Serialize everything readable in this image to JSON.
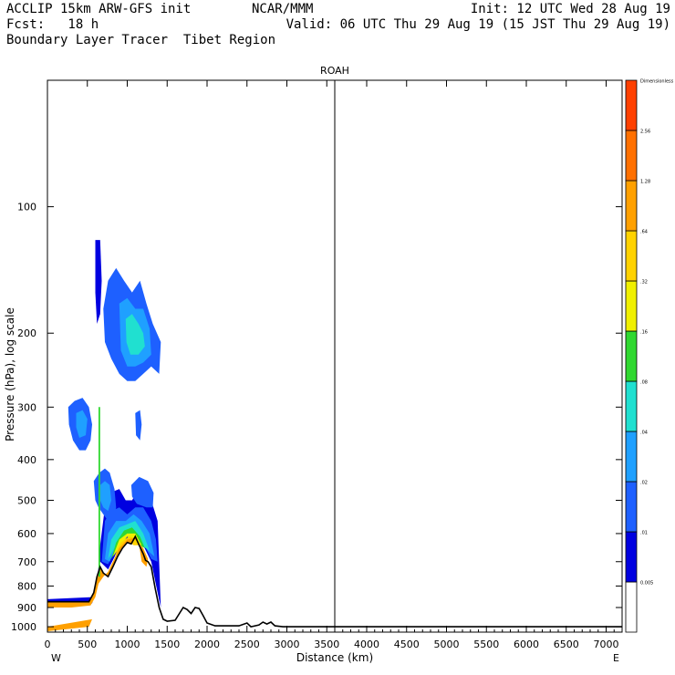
{
  "header": {
    "line1_left": "ACCLIP 15km ARW-GFS init",
    "line1_mid": "NCAR/MMM",
    "line1_right": "Init: 12 UTC Wed 28 Aug 19",
    "line2_left": "Fcst:   18 h",
    "line2_right": "Valid: 06 UTC Thu 29 Aug 19 (15 JST Thu 29 Aug 19)",
    "line3_left": "Boundary Layer Tracer  Tibet Region"
  },
  "chart_data": {
    "type": "heatmap",
    "title": "ROAH",
    "xlabel": "Distance (km)",
    "ylabel": "Pressure (hPa), log scale",
    "x_ticks": [
      0,
      500,
      1000,
      1500,
      2000,
      2500,
      3000,
      3500,
      4000,
      4500,
      5000,
      5500,
      6000,
      6500,
      7000
    ],
    "x_range": [
      0,
      7200
    ],
    "y_ticks": [
      100,
      200,
      300,
      400,
      500,
      600,
      700,
      800,
      900,
      1000
    ],
    "y_range": [
      50,
      1030
    ],
    "y_scale": "log",
    "left_end_label": "W",
    "right_end_label": "E",
    "marker_line_x": 3600,
    "colorbar": {
      "levels": [
        "0.005",
        ".01",
        ".02",
        ".04",
        ".08",
        ".16",
        ".32",
        ".64",
        "1.28",
        "2.56",
        "Dimensionless"
      ],
      "colors": [
        "#ffffff",
        "#0000e0",
        "#1e60ff",
        "#1fa0ff",
        "#20e0d0",
        "#30d830",
        "#f0f000",
        "#ffd200",
        "#ffa000",
        "#ff7000",
        "#ff4000"
      ]
    },
    "terrain": [
      [
        0,
        872
      ],
      [
        300,
        872
      ],
      [
        520,
        872
      ],
      [
        580,
        830
      ],
      [
        620,
        760
      ],
      [
        660,
        720
      ],
      [
        700,
        745
      ],
      [
        760,
        760
      ],
      [
        820,
        720
      ],
      [
        880,
        680
      ],
      [
        940,
        650
      ],
      [
        1000,
        630
      ],
      [
        1050,
        635
      ],
      [
        1100,
        610
      ],
      [
        1150,
        640
      ],
      [
        1200,
        670
      ],
      [
        1230,
        695
      ],
      [
        1260,
        700
      ],
      [
        1300,
        720
      ],
      [
        1350,
        810
      ],
      [
        1400,
        900
      ],
      [
        1450,
        960
      ],
      [
        1500,
        970
      ],
      [
        1600,
        965
      ],
      [
        1700,
        900
      ],
      [
        1750,
        910
      ],
      [
        1800,
        930
      ],
      [
        1850,
        900
      ],
      [
        1900,
        905
      ],
      [
        1950,
        940
      ],
      [
        2000,
        980
      ],
      [
        2100,
        995
      ],
      [
        2400,
        995
      ],
      [
        2500,
        980
      ],
      [
        2550,
        1000
      ],
      [
        2650,
        990
      ],
      [
        2700,
        975
      ],
      [
        2750,
        985
      ],
      [
        2800,
        975
      ],
      [
        2850,
        995
      ],
      [
        2950,
        1000
      ],
      [
        3500,
        1000
      ],
      [
        4500,
        1000
      ],
      [
        7200,
        1000
      ]
    ],
    "tracer_regions": [
      {
        "level": ".01",
        "polygon": [
          [
            0,
            880
          ],
          [
            560,
            880
          ],
          [
            620,
            800
          ],
          [
            660,
            640
          ],
          [
            720,
            520
          ],
          [
            780,
            480
          ],
          [
            900,
            470
          ],
          [
            980,
            500
          ],
          [
            1060,
            500
          ],
          [
            1140,
            470
          ],
          [
            1220,
            460
          ],
          [
            1300,
            500
          ],
          [
            1380,
            560
          ],
          [
            1420,
            900
          ],
          [
            1380,
            830
          ],
          [
            1300,
            700
          ],
          [
            1200,
            640
          ],
          [
            1000,
            620
          ],
          [
            880,
            660
          ],
          [
            760,
            730
          ],
          [
            660,
            700
          ],
          [
            600,
            800
          ],
          [
            560,
            850
          ],
          [
            0,
            860
          ]
        ]
      },
      {
        "level": ".02",
        "polygon": [
          [
            680,
            700
          ],
          [
            720,
            560
          ],
          [
            800,
            530
          ],
          [
            900,
            520
          ],
          [
            1000,
            540
          ],
          [
            1100,
            520
          ],
          [
            1200,
            520
          ],
          [
            1300,
            560
          ],
          [
            1360,
            620
          ],
          [
            1380,
            700
          ],
          [
            1300,
            690
          ],
          [
            1200,
            630
          ],
          [
            1000,
            610
          ],
          [
            880,
            640
          ],
          [
            760,
            710
          ]
        ]
      },
      {
        "level": ".04",
        "polygon": [
          [
            720,
            690
          ],
          [
            760,
            600
          ],
          [
            860,
            560
          ],
          [
            980,
            560
          ],
          [
            1080,
            540
          ],
          [
            1180,
            560
          ],
          [
            1280,
            600
          ],
          [
            1340,
            680
          ],
          [
            1260,
            660
          ],
          [
            1180,
            620
          ],
          [
            1000,
            600
          ],
          [
            880,
            630
          ],
          [
            780,
            700
          ]
        ]
      },
      {
        "level": ".08",
        "polygon": [
          [
            760,
            690
          ],
          [
            800,
            620
          ],
          [
            900,
            580
          ],
          [
            1000,
            570
          ],
          [
            1100,
            560
          ],
          [
            1200,
            600
          ],
          [
            1280,
            660
          ],
          [
            1180,
            640
          ],
          [
            1000,
            600
          ],
          [
            860,
            640
          ]
        ]
      },
      {
        "level": ".16",
        "polygon": [
          [
            800,
            690
          ],
          [
            860,
            630
          ],
          [
            960,
            590
          ],
          [
            1060,
            580
          ],
          [
            1160,
            610
          ],
          [
            1220,
            650
          ],
          [
            1150,
            640
          ],
          [
            1000,
            600
          ],
          [
            880,
            650
          ]
        ]
      },
      {
        "level": ".32",
        "polygon": [
          [
            820,
            680
          ],
          [
            900,
            620
          ],
          [
            1000,
            600
          ],
          [
            1100,
            600
          ],
          [
            1180,
            640
          ],
          [
            1100,
            630
          ],
          [
            1000,
            610
          ],
          [
            900,
            650
          ]
        ]
      },
      {
        "level": ".64",
        "polygon": [
          [
            840,
            680
          ],
          [
            920,
            630
          ],
          [
            1020,
            610
          ],
          [
            1120,
            615
          ],
          [
            1160,
            640
          ],
          [
            1080,
            640
          ],
          [
            1000,
            620
          ],
          [
            900,
            660
          ]
        ]
      },
      {
        "level": "1.28",
        "polygon": [
          [
            0,
            1025
          ],
          [
            0,
            900
          ],
          [
            300,
            900
          ],
          [
            540,
            890
          ],
          [
            600,
            850
          ],
          [
            640,
            790
          ],
          [
            700,
            760
          ],
          [
            760,
            740
          ],
          [
            820,
            700
          ],
          [
            900,
            650
          ],
          [
            1000,
            620
          ],
          [
            1080,
            615
          ],
          [
            1140,
            630
          ],
          [
            1200,
            650
          ],
          [
            1260,
            690
          ],
          [
            1240,
            720
          ],
          [
            1180,
            700
          ],
          [
            1150,
            640
          ],
          [
            1100,
            610
          ],
          [
            1050,
            635
          ],
          [
            1000,
            630
          ],
          [
            940,
            650
          ],
          [
            880,
            680
          ],
          [
            820,
            720
          ],
          [
            760,
            760
          ],
          [
            700,
            745
          ],
          [
            660,
            720
          ],
          [
            620,
            760
          ],
          [
            580,
            830
          ],
          [
            520,
            872
          ],
          [
            300,
            872
          ],
          [
            0,
            872
          ],
          [
            0,
            1025
          ],
          [
            520,
            1000
          ],
          [
            560,
            960
          ],
          [
            0,
            1000
          ]
        ]
      },
      {
        "level": ".01",
        "polygon": [
          [
            600,
            120
          ],
          [
            660,
            120
          ],
          [
            680,
            150
          ],
          [
            660,
            180
          ],
          [
            620,
            190
          ],
          [
            600,
            160
          ]
        ]
      },
      {
        "level": ".02",
        "polygon": [
          [
            700,
            175
          ],
          [
            760,
            150
          ],
          [
            860,
            140
          ],
          [
            960,
            150
          ],
          [
            1060,
            160
          ],
          [
            1160,
            150
          ],
          [
            1240,
            170
          ],
          [
            1320,
            190
          ],
          [
            1420,
            210
          ],
          [
            1400,
            250
          ],
          [
            1300,
            240
          ],
          [
            1200,
            250
          ],
          [
            1100,
            260
          ],
          [
            1000,
            260
          ],
          [
            900,
            250
          ],
          [
            800,
            230
          ],
          [
            720,
            210
          ]
        ]
      },
      {
        "level": ".04",
        "polygon": [
          [
            900,
            170
          ],
          [
            1000,
            165
          ],
          [
            1100,
            175
          ],
          [
            1200,
            175
          ],
          [
            1280,
            195
          ],
          [
            1300,
            225
          ],
          [
            1200,
            235
          ],
          [
            1100,
            240
          ],
          [
            1000,
            240
          ],
          [
            920,
            220
          ]
        ]
      },
      {
        "level": ".08",
        "polygon": [
          [
            980,
            185
          ],
          [
            1060,
            180
          ],
          [
            1140,
            190
          ],
          [
            1200,
            200
          ],
          [
            1220,
            215
          ],
          [
            1140,
            225
          ],
          [
            1040,
            225
          ],
          [
            990,
            210
          ]
        ]
      },
      {
        "level": ".02",
        "polygon": [
          [
            260,
            300
          ],
          [
            340,
            290
          ],
          [
            440,
            285
          ],
          [
            520,
            300
          ],
          [
            560,
            330
          ],
          [
            540,
            360
          ],
          [
            480,
            380
          ],
          [
            400,
            380
          ],
          [
            320,
            360
          ],
          [
            270,
            330
          ]
        ]
      },
      {
        "level": ".04",
        "polygon": [
          [
            360,
            310
          ],
          [
            440,
            305
          ],
          [
            500,
            320
          ],
          [
            480,
            350
          ],
          [
            400,
            355
          ],
          [
            360,
            335
          ]
        ]
      },
      {
        "level": ".02",
        "polygon": [
          [
            580,
            450
          ],
          [
            650,
            430
          ],
          [
            720,
            420
          ],
          [
            780,
            430
          ],
          [
            840,
            470
          ],
          [
            860,
            520
          ],
          [
            820,
            560
          ],
          [
            760,
            560
          ],
          [
            700,
            540
          ],
          [
            640,
            520
          ],
          [
            600,
            500
          ]
        ]
      },
      {
        "level": ".04",
        "polygon": [
          [
            660,
            460
          ],
          [
            720,
            450
          ],
          [
            780,
            460
          ],
          [
            800,
            500
          ],
          [
            760,
            530
          ],
          [
            700,
            520
          ],
          [
            660,
            500
          ]
        ]
      },
      {
        "level": ".02",
        "polygon": [
          [
            1100,
            310
          ],
          [
            1160,
            305
          ],
          [
            1180,
            330
          ],
          [
            1160,
            360
          ],
          [
            1110,
            350
          ]
        ]
      },
      {
        "level": ".02",
        "polygon": [
          [
            1050,
            460
          ],
          [
            1150,
            440
          ],
          [
            1260,
            450
          ],
          [
            1330,
            480
          ],
          [
            1320,
            520
          ],
          [
            1240,
            520
          ],
          [
            1120,
            510
          ],
          [
            1060,
            490
          ]
        ]
      },
      {
        "level": ".16",
        "polygon": [
          [
            640,
            300
          ],
          [
            660,
            300
          ],
          [
            660,
            760
          ],
          [
            640,
            760
          ]
        ]
      }
    ]
  }
}
